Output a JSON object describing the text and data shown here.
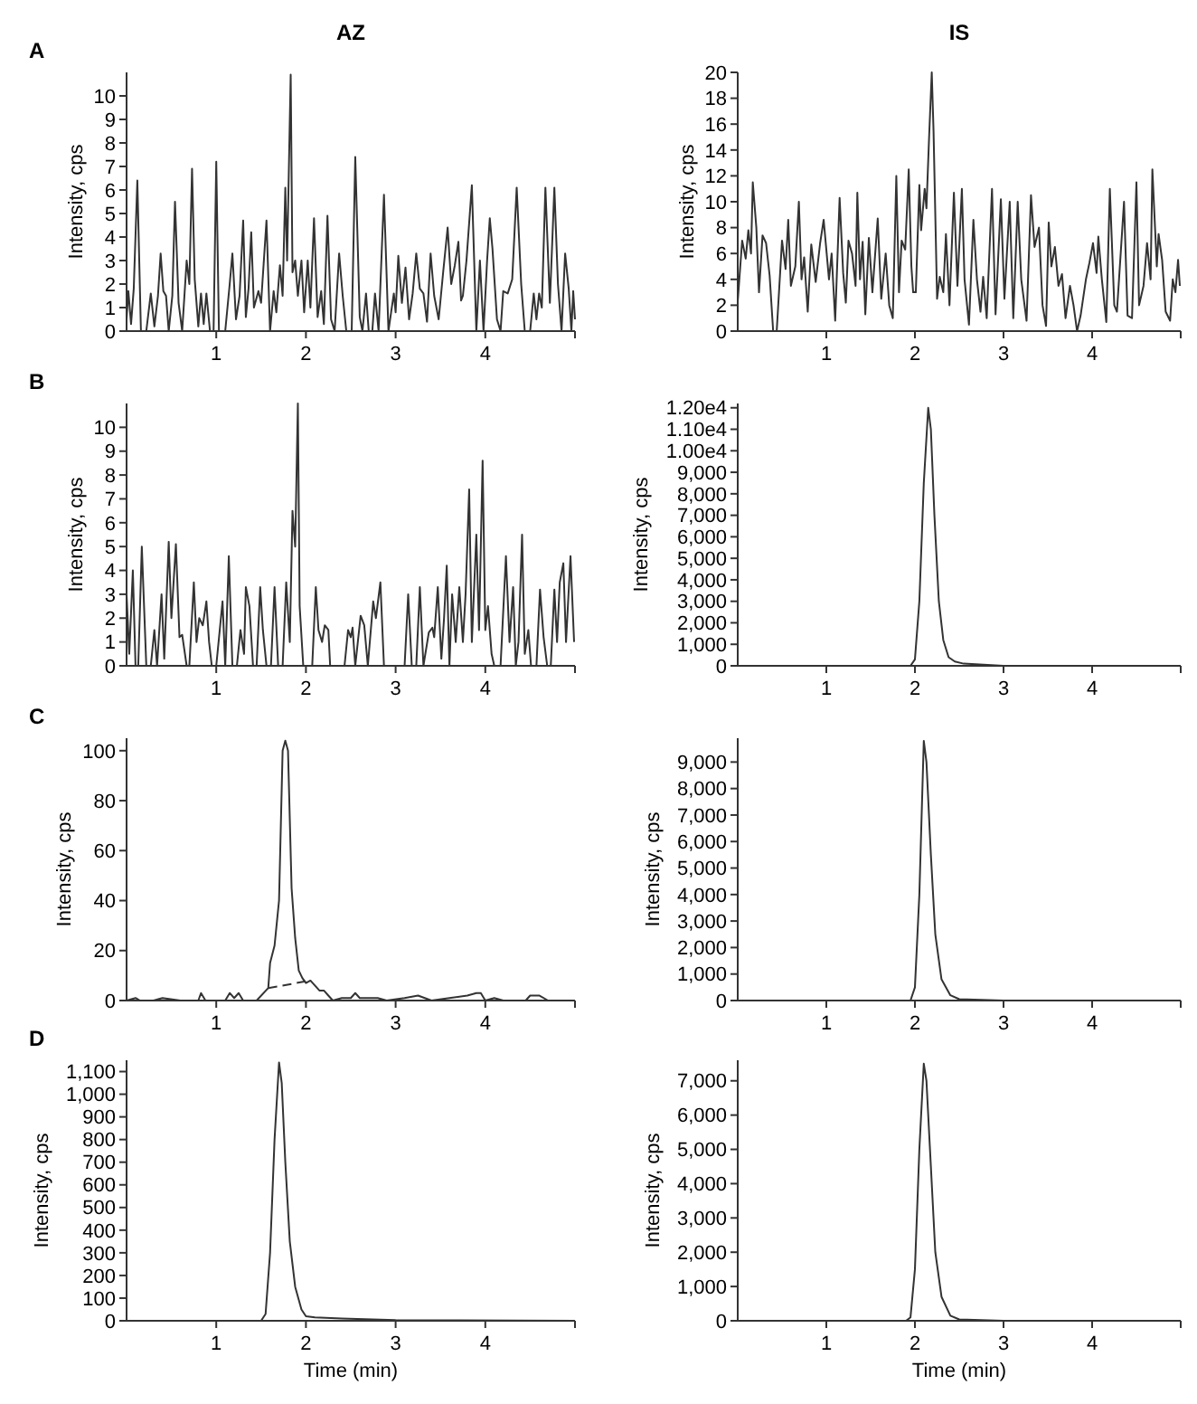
{
  "chart_data": [
    {
      "type": "line",
      "title": "AZ",
      "annotations": [
        "A"
      ],
      "ylabel": "Intensity, cps",
      "xlim": [
        0,
        5
      ],
      "xticks": [
        1,
        2,
        3,
        4
      ],
      "ylim": [
        0,
        11
      ],
      "yticks": [
        0,
        1,
        2,
        3,
        4,
        5,
        6,
        7,
        8,
        9,
        10
      ],
      "series": [
        {
          "color": "#333333",
          "x": [
            0,
            0.02,
            0.05,
            0.08,
            0.12,
            0.16,
            0.22,
            0.27,
            0.31,
            0.35,
            0.38,
            0.41,
            0.44,
            0.47,
            0.51,
            0.54,
            0.58,
            0.62,
            0.67,
            0.7,
            0.73,
            0.76,
            0.8,
            0.83,
            0.86,
            0.89,
            0.93,
            0.97,
            1.0,
            1.03,
            1.1,
            1.15,
            1.18,
            1.22,
            1.26,
            1.3,
            1.33,
            1.36,
            1.39,
            1.42,
            1.47,
            1.5,
            1.56,
            1.6,
            1.64,
            1.67,
            1.71,
            1.74,
            1.77,
            1.79,
            1.83,
            1.85,
            1.88,
            1.91,
            1.95,
            1.98,
            2.02,
            2.05,
            2.09,
            2.13,
            2.17,
            2.2,
            2.24,
            2.28,
            2.32,
            2.37,
            2.41,
            2.45,
            2.51,
            2.55,
            2.6,
            2.63,
            2.67,
            2.7,
            2.74,
            2.77,
            2.81,
            2.87,
            2.92,
            2.95,
            2.98,
            3.0,
            3.03,
            3.07,
            3.11,
            3.15,
            3.19,
            3.23,
            3.27,
            3.31,
            3.35,
            3.39,
            3.43,
            3.48,
            3.53,
            3.58,
            3.62,
            3.66,
            3.7,
            3.73,
            3.75,
            3.79,
            3.85,
            3.9,
            3.94,
            3.98,
            4.02,
            4.05,
            4.08,
            4.13,
            4.17,
            4.2,
            4.25,
            4.3,
            4.35,
            4.4,
            4.44,
            4.5,
            4.54,
            4.57,
            4.6,
            4.63,
            4.67,
            4.72,
            4.77,
            4.81,
            4.85,
            4.89,
            4.93,
            4.96,
            4.98,
            5.0
          ],
          "values": [
            0.5,
            1.7,
            0.3,
            1.8,
            6.4,
            0,
            0,
            1.6,
            0.2,
            1.5,
            3.3,
            1.7,
            1.5,
            0,
            1.5,
            5.5,
            1.2,
            0,
            3,
            2,
            6.9,
            2.2,
            0.2,
            1.6,
            0.3,
            1.6,
            0,
            0,
            7.2,
            0,
            0,
            2,
            3.3,
            0.5,
            1.5,
            4.7,
            0.6,
            1.8,
            4.2,
            1,
            1.7,
            1.2,
            4.7,
            0,
            1.7,
            0.8,
            2.8,
            1.5,
            6.1,
            3,
            10.9,
            2.5,
            3,
            1.5,
            3,
            0.8,
            3,
            1,
            4.8,
            0.6,
            1.7,
            0.3,
            4.9,
            0.5,
            0,
            3.3,
            1.5,
            0,
            0,
            7.4,
            0.6,
            0,
            1.6,
            0,
            0,
            1.6,
            0,
            5.8,
            0,
            0.8,
            1.6,
            0.8,
            3.2,
            1.2,
            2.7,
            0.5,
            1.6,
            3.3,
            1.8,
            1.6,
            0.4,
            3.3,
            1.5,
            0.5,
            2.5,
            4.4,
            2,
            2.8,
            3.8,
            1.3,
            1.5,
            3,
            6.2,
            0,
            3,
            0,
            3,
            4.8,
            3.5,
            0.5,
            0,
            1.7,
            1.6,
            2.2,
            6.1,
            2,
            0,
            0,
            1.6,
            0.5,
            1.6,
            1,
            6.1,
            1.2,
            6.1,
            2,
            0,
            3.3,
            1.8,
            0,
            1.7,
            0.5
          ]
        }
      ]
    },
    {
      "type": "line",
      "title": "IS",
      "xlim": [
        0,
        5
      ],
      "xticks": [
        1,
        2,
        3,
        4
      ],
      "ylim": [
        0,
        20
      ],
      "yticks": [
        0,
        2,
        4,
        6,
        8,
        10,
        12,
        14,
        16,
        18,
        20
      ],
      "ylabel": "Intensity, cps",
      "series": [
        {
          "color": "#333333",
          "x": [
            0,
            0.05,
            0.09,
            0.12,
            0.15,
            0.17,
            0.21,
            0.24,
            0.28,
            0.32,
            0.36,
            0.4,
            0.44,
            0.5,
            0.54,
            0.57,
            0.6,
            0.65,
            0.69,
            0.72,
            0.75,
            0.79,
            0.83,
            0.88,
            0.93,
            0.97,
            1.03,
            1.06,
            1.1,
            1.15,
            1.19,
            1.22,
            1.25,
            1.29,
            1.33,
            1.35,
            1.38,
            1.41,
            1.44,
            1.48,
            1.52,
            1.58,
            1.62,
            1.67,
            1.71,
            1.75,
            1.79,
            1.82,
            1.85,
            1.89,
            1.93,
            1.96,
            1.98,
            2.01,
            2.05,
            2.07,
            2.11,
            2.13,
            2.16,
            2.19,
            2.21,
            2.25,
            2.28,
            2.32,
            2.35,
            2.39,
            2.44,
            2.48,
            2.53,
            2.56,
            2.61,
            2.66,
            2.7,
            2.74,
            2.77,
            2.81,
            2.87,
            2.91,
            2.97,
            3.01,
            3.07,
            3.11,
            3.16,
            3.2,
            3.26,
            3.31,
            3.35,
            3.4,
            3.44,
            3.48,
            3.51,
            3.54,
            3.58,
            3.62,
            3.66,
            3.7,
            3.75,
            3.79,
            3.83,
            3.87,
            3.93,
            3.97,
            4.01,
            4.05,
            4.07,
            4.11,
            4.16,
            4.2,
            4.25,
            4.28,
            4.36,
            4.4,
            4.45,
            4.5,
            4.53,
            4.58,
            4.62,
            4.66,
            4.68,
            4.73,
            4.75,
            4.79,
            4.83,
            4.88,
            4.91,
            4.94,
            4.97,
            4.99
          ],
          "values": [
            2.3,
            7,
            5.6,
            7.8,
            6,
            11.5,
            8,
            3,
            7.4,
            6.8,
            4.3,
            0,
            0,
            7,
            4.8,
            8.6,
            3.5,
            5,
            10,
            4,
            5.7,
            1.5,
            6.7,
            3.8,
            6.8,
            8.6,
            4,
            6,
            0.8,
            10.3,
            4.5,
            2.2,
            7,
            6,
            3.5,
            10.7,
            4,
            6.9,
            1.3,
            7.2,
            3,
            8.7,
            2.5,
            6,
            2,
            1,
            12,
            3,
            7,
            6.3,
            12.5,
            5,
            3,
            3,
            11.3,
            7.8,
            11,
            9.5,
            15,
            20,
            15.5,
            2.5,
            4.2,
            3,
            7.5,
            2,
            10.7,
            3.5,
            11,
            4,
            0.5,
            8.6,
            4,
            1.5,
            4.2,
            1,
            11,
            1.3,
            10.2,
            2.5,
            10,
            1,
            10,
            4,
            0.8,
            10.5,
            6.5,
            8,
            2,
            0.4,
            8.4,
            5,
            6.5,
            3.5,
            4.4,
            1,
            3.5,
            2,
            0,
            1.2,
            4,
            5.3,
            6.8,
            4.5,
            7.3,
            4,
            0.7,
            11,
            2,
            1.5,
            10,
            1.2,
            1,
            11.5,
            2,
            3.5,
            6.8,
            4,
            12.5,
            5,
            7.5,
            5.5,
            1.5,
            0.8,
            4,
            3,
            5.5,
            3.5
          ]
        }
      ]
    },
    {
      "type": "line",
      "annotations": [
        "B"
      ],
      "ylabel": "Intensity, cps",
      "xlim": [
        0,
        5
      ],
      "xticks": [
        1,
        2,
        3,
        4
      ],
      "ylim": [
        0,
        11
      ],
      "yticks": [
        0,
        1,
        2,
        3,
        4,
        5,
        6,
        7,
        8,
        9,
        10
      ],
      "series": [
        {
          "color": "#333333",
          "x": [
            0,
            0.03,
            0.07,
            0.1,
            0.13,
            0.17,
            0.22,
            0.27,
            0.31,
            0.34,
            0.39,
            0.42,
            0.47,
            0.5,
            0.55,
            0.59,
            0.62,
            0.67,
            0.7,
            0.75,
            0.78,
            0.81,
            0.85,
            0.89,
            0.92,
            0.95,
            1.0,
            1.07,
            1.1,
            1.14,
            1.18,
            1.23,
            1.27,
            1.31,
            1.33,
            1.37,
            1.41,
            1.45,
            1.49,
            1.52,
            1.56,
            1.61,
            1.65,
            1.69,
            1.74,
            1.78,
            1.82,
            1.85,
            1.88,
            1.91,
            1.93,
            1.97,
            2.07,
            2.11,
            2.14,
            2.18,
            2.21,
            2.25,
            2.27,
            2.43,
            2.47,
            2.5,
            2.52,
            2.55,
            2.61,
            2.65,
            2.69,
            2.75,
            2.78,
            2.83,
            2.87,
            3.1,
            3.14,
            3.18,
            3.23,
            3.27,
            3.31,
            3.37,
            3.41,
            3.43,
            3.47,
            3.51,
            3.54,
            3.57,
            3.6,
            3.63,
            3.67,
            3.71,
            3.75,
            3.78,
            3.82,
            3.85,
            3.9,
            3.93,
            3.97,
            4.0,
            4.03,
            4.07,
            4.1,
            4.17,
            4.23,
            4.27,
            4.31,
            4.34,
            4.37,
            4.41,
            4.44,
            4.48,
            4.51,
            4.57,
            4.61,
            4.65,
            4.69,
            4.73,
            4.77,
            4.8,
            4.83,
            4.87,
            4.9,
            4.95,
            4.99
          ],
          "values": [
            3,
            0.5,
            4,
            0,
            0,
            5,
            0,
            0,
            1.5,
            0,
            3,
            0.3,
            5.2,
            2,
            5.1,
            1.2,
            1.3,
            0,
            0,
            3.5,
            1,
            2,
            1.7,
            2.7,
            1,
            0,
            0,
            2.7,
            0,
            4.6,
            0,
            0,
            1.5,
            0.5,
            3.3,
            2.5,
            0,
            0,
            3.3,
            1.5,
            0,
            0,
            3.3,
            0,
            0,
            3.5,
            1,
            6.5,
            5,
            11,
            2.5,
            0,
            0,
            3.3,
            1.5,
            1,
            1.7,
            1.5,
            0,
            0,
            1.5,
            1.2,
            1.6,
            0,
            2.1,
            1.7,
            0,
            2.7,
            2,
            3.5,
            0,
            0,
            3,
            0,
            0,
            3.3,
            0,
            1.4,
            1.6,
            1.2,
            3.3,
            0.3,
            2,
            4.2,
            0,
            3,
            1,
            3.3,
            1,
            3,
            7.4,
            1,
            5.5,
            1.5,
            8.6,
            1.5,
            2.5,
            0.5,
            0,
            0,
            4.6,
            1,
            3.3,
            0,
            1,
            5.5,
            0.5,
            1.5,
            0,
            0,
            3.2,
            1.2,
            0,
            0,
            3.2,
            1,
            3.5,
            4.3,
            1,
            4.6,
            1
          ]
        }
      ]
    },
    {
      "type": "line",
      "ylabel": "Intensity, cps",
      "xlim": [
        0,
        5
      ],
      "xticks": [
        1,
        2,
        3,
        4
      ],
      "ylim": [
        0,
        12200
      ],
      "yticks": [
        0,
        {
          "value": 1000,
          "label": "1,000"
        },
        {
          "value": 2000,
          "label": "2,000"
        },
        {
          "value": 3000,
          "label": "3,000"
        },
        {
          "value": 4000,
          "label": "4,000"
        },
        {
          "value": 5000,
          "label": "5,000"
        },
        {
          "value": 6000,
          "label": "6,000"
        },
        {
          "value": 7000,
          "label": "7,000"
        },
        {
          "value": 8000,
          "label": "8,000"
        },
        {
          "value": 9000,
          "label": "9,000"
        },
        {
          "value": 10000,
          "label": "1.00e4"
        },
        {
          "value": 11000,
          "label": "1.10e4"
        },
        {
          "value": 12000,
          "label": "1.20e4"
        }
      ],
      "series": [
        {
          "color": "#333333",
          "x": [
            0,
            1.95,
            2.0,
            2.05,
            2.1,
            2.15,
            2.18,
            2.22,
            2.27,
            2.32,
            2.38,
            2.45,
            2.55,
            3.0,
            5.0
          ],
          "values": [
            0,
            0,
            300,
            3000,
            8500,
            12000,
            11000,
            7000,
            3000,
            1200,
            400,
            200,
            100,
            0,
            0
          ]
        }
      ]
    },
    {
      "type": "line",
      "annotations": [
        "C"
      ],
      "ylabel": "Intensity, cps",
      "xlim": [
        0,
        5
      ],
      "xticks": [
        1,
        2,
        3,
        4
      ],
      "ylim": [
        0,
        105
      ],
      "yticks": [
        0,
        20,
        40,
        60,
        80,
        100
      ],
      "series": [
        {
          "color": "#333333",
          "x": [
            0,
            0.1,
            0.15,
            0.3,
            0.4,
            0.6,
            0.8,
            0.83,
            0.88,
            1.0,
            1.1,
            1.15,
            1.2,
            1.25,
            1.3,
            1.45,
            1.58,
            1.6,
            1.65,
            1.7,
            1.74,
            1.77,
            1.8,
            1.84,
            1.88,
            1.92,
            1.96,
            2.0,
            2.05,
            2.1,
            2.15,
            2.2,
            2.25,
            2.3,
            2.4,
            2.5,
            2.55,
            2.6,
            2.8,
            2.9,
            3.1,
            3.25,
            3.4,
            3.6,
            3.8,
            3.9,
            3.95,
            4.0,
            4.1,
            4.2,
            4.45,
            4.5,
            4.6,
            4.7,
            4.9
          ],
          "values": [
            0,
            1,
            0,
            0,
            1,
            0,
            0,
            3,
            0,
            0,
            0,
            3,
            1,
            3,
            0,
            0,
            5,
            15,
            22,
            40,
            100,
            104,
            100,
            45,
            25,
            12,
            9,
            7,
            8,
            6,
            4,
            4,
            2,
            0,
            1,
            1,
            3,
            1,
            1,
            0,
            1,
            2,
            0,
            1,
            2,
            3,
            3,
            0,
            1,
            0,
            0,
            2,
            2,
            0,
            0
          ]
        },
        {
          "color": "#333333",
          "line_style": "dashed",
          "x": [
            1.58,
            2.05
          ],
          "values": [
            5,
            8
          ]
        }
      ]
    },
    {
      "type": "line",
      "ylabel": "Intensity, cps",
      "xlim": [
        0,
        5
      ],
      "xticks": [
        1,
        2,
        3,
        4
      ],
      "ylim": [
        0,
        9900
      ],
      "yticks": [
        0,
        {
          "value": 1000,
          "label": "1,000"
        },
        {
          "value": 2000,
          "label": "2,000"
        },
        {
          "value": 3000,
          "label": "3,000"
        },
        {
          "value": 4000,
          "label": "4,000"
        },
        {
          "value": 5000,
          "label": "5,000"
        },
        {
          "value": 6000,
          "label": "6,000"
        },
        {
          "value": 7000,
          "label": "7,000"
        },
        {
          "value": 8000,
          "label": "8,000"
        },
        {
          "value": 9000,
          "label": "9,000"
        }
      ],
      "series": [
        {
          "color": "#333333",
          "x": [
            0,
            1.95,
            2.0,
            2.05,
            2.1,
            2.13,
            2.18,
            2.23,
            2.3,
            2.4,
            2.5,
            3.0,
            5.0
          ],
          "values": [
            0,
            0,
            500,
            4000,
            9800,
            9000,
            5500,
            2500,
            800,
            200,
            50,
            0,
            0
          ]
        }
      ]
    },
    {
      "type": "line",
      "annotations": [
        "D"
      ],
      "xlabel": "Time (min)",
      "ylabel": "Intensity, cps",
      "xlim": [
        0,
        5
      ],
      "xticks": [
        1,
        2,
        3,
        4
      ],
      "ylim": [
        0,
        1150
      ],
      "yticks": [
        0,
        100,
        200,
        300,
        400,
        500,
        600,
        700,
        800,
        900,
        {
          "value": 1000,
          "label": "1,000"
        },
        {
          "value": 1100,
          "label": "1,100"
        }
      ],
      "series": [
        {
          "color": "#333333",
          "x": [
            0,
            1.5,
            1.55,
            1.6,
            1.65,
            1.7,
            1.73,
            1.77,
            1.82,
            1.88,
            1.95,
            2.0,
            2.1,
            2.4,
            3.0,
            5.0
          ],
          "values": [
            0,
            0,
            30,
            300,
            800,
            1140,
            1050,
            700,
            350,
            150,
            50,
            20,
            15,
            10,
            3,
            0
          ]
        }
      ]
    },
    {
      "type": "line",
      "xlabel": "Time (min)",
      "ylabel": "Intensity, cps",
      "xlim": [
        0,
        5
      ],
      "xticks": [
        1,
        2,
        3,
        4
      ],
      "ylim": [
        0,
        7600
      ],
      "yticks": [
        0,
        {
          "value": 1000,
          "label": "1,000"
        },
        {
          "value": 2000,
          "label": "2,000"
        },
        {
          "value": 3000,
          "label": "3,000"
        },
        {
          "value": 4000,
          "label": "4,000"
        },
        {
          "value": 5000,
          "label": "5,000"
        },
        {
          "value": 6000,
          "label": "6,000"
        },
        {
          "value": 7000,
          "label": "7,000"
        }
      ],
      "series": [
        {
          "color": "#333333",
          "x": [
            0,
            1.9,
            1.95,
            2.0,
            2.05,
            2.1,
            2.13,
            2.18,
            2.23,
            2.3,
            2.4,
            2.5,
            3.0,
            5.0
          ],
          "values": [
            0,
            0,
            100,
            1500,
            5000,
            7500,
            7000,
            4500,
            2000,
            700,
            150,
            40,
            0,
            0
          ]
        }
      ]
    }
  ]
}
